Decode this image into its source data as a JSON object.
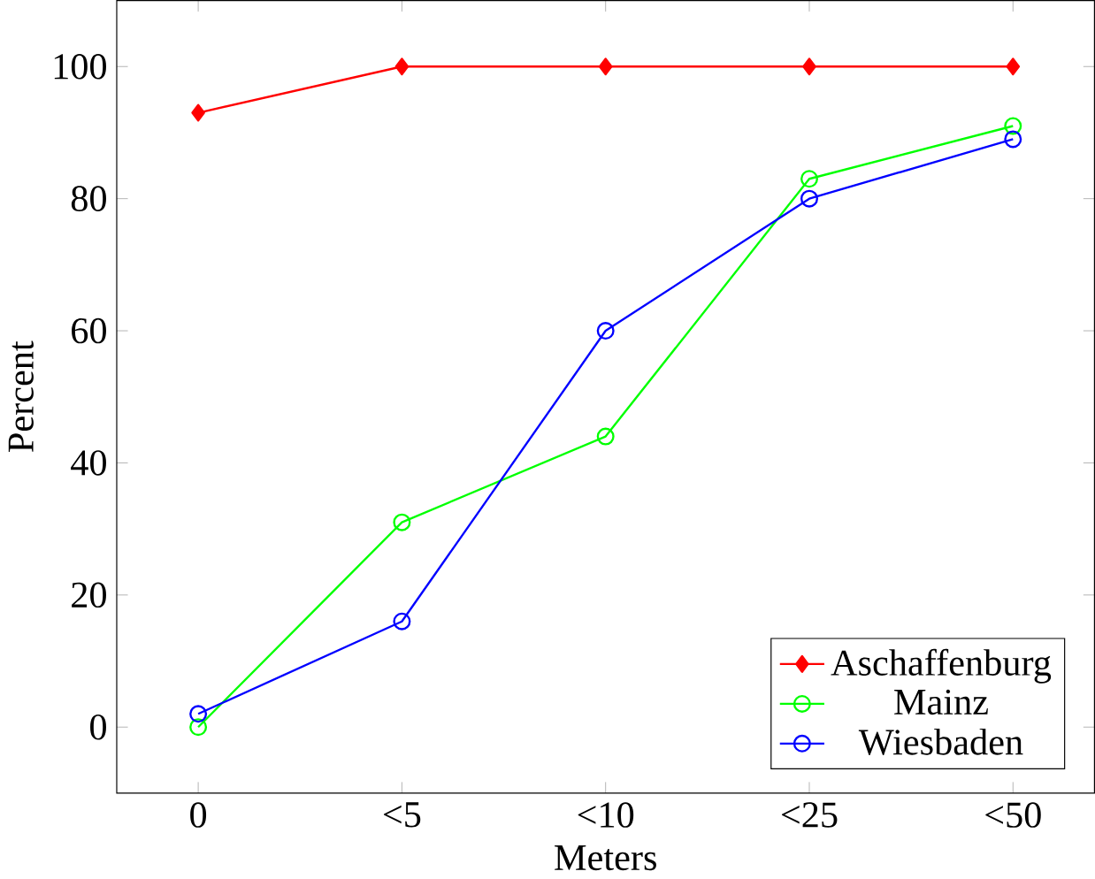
{
  "chart_data": {
    "type": "line",
    "xlabel": "Meters",
    "ylabel": "Percent",
    "categories": [
      "0",
      "<5",
      "<10",
      "<25",
      "<50"
    ],
    "series": [
      {
        "name": "Aschaffenburg",
        "color": "#ff0000",
        "marker": "diamond",
        "values": [
          93,
          100,
          100,
          100,
          100
        ]
      },
      {
        "name": "Mainz",
        "color": "#00ff00",
        "marker": "circle",
        "values": [
          0,
          31,
          44,
          83,
          91
        ]
      },
      {
        "name": "Wiesbaden",
        "color": "#0000ff",
        "marker": "circle",
        "values": [
          2,
          16,
          60,
          80,
          89
        ]
      }
    ],
    "ylim": [
      -10,
      110
    ],
    "yticks": [
      0,
      20,
      40,
      60,
      80,
      100
    ],
    "legend": "bottom right",
    "line_style": "solid"
  }
}
